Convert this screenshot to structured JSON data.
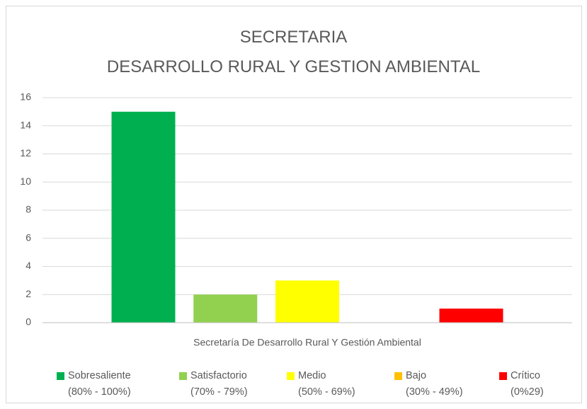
{
  "chart_data": {
    "type": "bar",
    "title": "SECRETARIA\nDESARROLLO RURAL Y GESTION AMBIENTAL",
    "categories": [
      "Secretaría De Desarrollo Rural Y Gestión Ambiental"
    ],
    "series": [
      {
        "name": "Sobresaliente\n(80%  - 100%)",
        "color": "#00b050",
        "values": [
          15
        ]
      },
      {
        "name": "Satisfactorio\n(70% - 79%)",
        "color": "#92d050",
        "values": [
          2
        ]
      },
      {
        "name": "Medio\n(50%  - 69%)",
        "color": "#ffff00",
        "values": [
          3
        ]
      },
      {
        "name": "Bajo\n(30% - 49%)",
        "color": "#ffc000",
        "values": [
          0
        ]
      },
      {
        "name": "Crítico\n(0%29)",
        "color": "#ff0000",
        "values": [
          1
        ]
      }
    ],
    "ylim": [
      0,
      16
    ],
    "yticks": [
      0,
      2,
      4,
      6,
      8,
      10,
      12,
      14,
      16
    ],
    "grid": true,
    "legend": "bottom"
  }
}
